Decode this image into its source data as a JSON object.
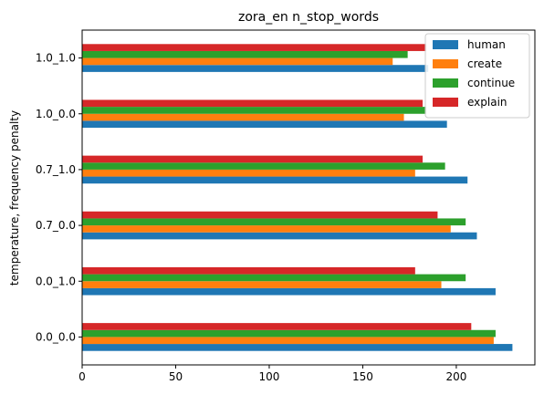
{
  "chart_data": {
    "type": "bar",
    "orientation": "horizontal",
    "title": "zora_en n_stop_words",
    "xlabel": "",
    "ylabel": "temperature, frequency penalty",
    "categories": [
      "0.0_0.0",
      "0.0_1.0",
      "0.7_0.0",
      "0.7_1.0",
      "1.0_0.0",
      "1.0_1.0"
    ],
    "xlim": [
      0,
      242
    ],
    "xticks": [
      0,
      50,
      100,
      150,
      200
    ],
    "series": [
      {
        "name": "human",
        "color": "#1f77b4",
        "values": [
          230,
          221,
          211,
          206,
          195,
          185
        ]
      },
      {
        "name": "create",
        "color": "#ff7f0e",
        "values": [
          220,
          192,
          197,
          178,
          172,
          166
        ]
      },
      {
        "name": "continue",
        "color": "#2ca02c",
        "values": [
          221,
          205,
          205,
          194,
          184,
          174
        ]
      },
      {
        "name": "explain",
        "color": "#d62728",
        "values": [
          208,
          178,
          190,
          182,
          182,
          184
        ]
      }
    ],
    "legend_position": "top-right",
    "grid": false
  }
}
